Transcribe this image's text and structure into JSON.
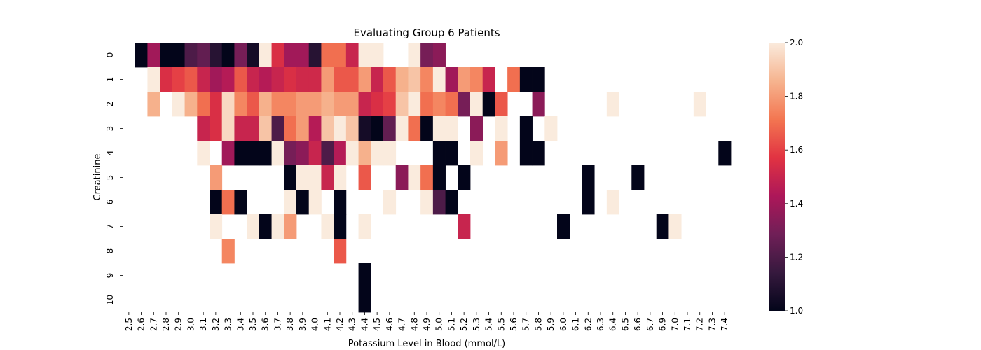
{
  "chart_data": {
    "type": "heatmap",
    "title": "Evaluating Group 6 Patients",
    "xlabel": "Potassium Level in Blood (mmol/L)",
    "ylabel": "Creatinine",
    "x_categories": [
      "2.5",
      "2.6",
      "2.7",
      "2.8",
      "2.9",
      "3.0",
      "3.1",
      "3.2",
      "3.3",
      "3.4",
      "3.5",
      "3.6",
      "3.7",
      "3.8",
      "3.9",
      "4.0",
      "4.1",
      "4.2",
      "4.3",
      "4.4",
      "4.5",
      "4.6",
      "4.7",
      "4.8",
      "4.9",
      "5.0",
      "5.1",
      "5.2",
      "5.3",
      "5.4",
      "5.5",
      "5.6",
      "5.7",
      "5.8",
      "5.9",
      "6.0",
      "6.1",
      "6.2",
      "6.3",
      "6.4",
      "6.5",
      "6.6",
      "6.7",
      "6.9",
      "7.0",
      "7.1",
      "7.2",
      "7.3",
      "7.4"
    ],
    "y_categories": [
      "0",
      "1",
      "2",
      "3",
      "4",
      "5",
      "6",
      "7",
      "8",
      "9",
      "10"
    ],
    "value_range": [
      1.0,
      2.0
    ],
    "colorbar_ticks": [
      "1.0",
      "1.2",
      "1.4",
      "1.6",
      "1.8",
      "2.0"
    ],
    "colormap": [
      "#03051a",
      "#36193e",
      "#701f57",
      "#ad1759",
      "#e13342",
      "#f37651",
      "#f6b48f",
      "#faebdd"
    ],
    "values": [
      [
        null,
        1.0,
        1.4,
        1.0,
        1.0,
        1.2,
        1.25,
        1.1,
        1.0,
        1.3,
        1.05,
        2.0,
        1.55,
        1.4,
        1.4,
        1.1,
        1.7,
        1.7,
        1.5,
        2.0,
        2.0,
        null,
        null,
        2.0,
        1.3,
        1.35,
        null,
        null,
        null,
        null,
        null,
        null,
        null,
        null,
        null,
        null,
        null,
        null,
        null,
        null,
        null,
        null,
        null,
        null,
        null,
        null,
        null,
        null,
        null
      ],
      [
        null,
        null,
        2.0,
        1.55,
        1.6,
        1.65,
        1.5,
        1.4,
        1.45,
        1.65,
        1.5,
        1.45,
        1.5,
        1.55,
        1.52,
        1.52,
        1.8,
        1.65,
        1.65,
        1.8,
        1.5,
        1.65,
        1.85,
        1.9,
        1.75,
        2.0,
        1.4,
        1.8,
        1.75,
        1.5,
        null,
        1.7,
        1.0,
        1.0,
        null,
        null,
        null,
        null,
        null,
        null,
        null,
        null,
        null,
        null,
        null,
        null,
        null,
        null,
        null
      ],
      [
        null,
        null,
        1.85,
        null,
        2.0,
        1.85,
        1.7,
        1.55,
        1.95,
        1.75,
        1.65,
        1.85,
        1.75,
        1.75,
        1.8,
        1.8,
        1.85,
        1.8,
        1.8,
        1.5,
        1.55,
        1.6,
        1.9,
        2.0,
        1.7,
        1.75,
        1.7,
        1.3,
        2.0,
        1.0,
        1.65,
        null,
        null,
        1.35,
        null,
        null,
        null,
        null,
        null,
        2.0,
        null,
        null,
        null,
        null,
        null,
        null,
        2.0,
        null,
        null
      ],
      [
        null,
        null,
        null,
        null,
        null,
        null,
        1.5,
        1.55,
        1.95,
        1.5,
        1.5,
        1.9,
        1.2,
        1.7,
        1.8,
        1.45,
        1.9,
        2.0,
        1.9,
        1.05,
        1.0,
        1.25,
        2.0,
        1.7,
        1.0,
        2.0,
        2.0,
        null,
        1.35,
        null,
        2.0,
        null,
        1.0,
        null,
        2.0,
        null,
        null,
        null,
        null,
        null,
        null,
        null,
        null,
        null,
        null,
        null,
        null,
        null,
        null
      ],
      [
        null,
        null,
        null,
        null,
        null,
        null,
        2.0,
        null,
        1.4,
        1.0,
        1.0,
        1.0,
        2.0,
        1.3,
        1.35,
        1.5,
        1.2,
        1.45,
        2.0,
        1.85,
        2.0,
        2.0,
        null,
        null,
        null,
        1.0,
        1.0,
        null,
        2.0,
        null,
        1.8,
        null,
        1.0,
        1.0,
        null,
        null,
        null,
        null,
        null,
        null,
        null,
        null,
        null,
        null,
        null,
        null,
        null,
        null,
        1.0
      ],
      [
        null,
        null,
        null,
        null,
        null,
        null,
        null,
        1.8,
        null,
        null,
        null,
        null,
        null,
        1.0,
        2.0,
        2.0,
        1.5,
        2.0,
        null,
        1.65,
        null,
        null,
        1.35,
        2.0,
        1.7,
        1.0,
        null,
        1.0,
        null,
        null,
        null,
        null,
        null,
        null,
        null,
        null,
        null,
        1.0,
        null,
        null,
        null,
        1.0,
        null,
        null,
        null,
        null,
        null,
        null,
        null
      ],
      [
        null,
        null,
        null,
        null,
        null,
        null,
        null,
        1.0,
        1.7,
        1.0,
        null,
        null,
        null,
        2.0,
        1.0,
        2.0,
        null,
        1.0,
        null,
        null,
        null,
        2.0,
        null,
        null,
        2.0,
        1.2,
        1.0,
        null,
        null,
        null,
        null,
        null,
        null,
        null,
        null,
        null,
        null,
        1.0,
        null,
        2.0,
        null,
        null,
        null,
        null,
        null,
        null,
        null,
        null,
        null
      ],
      [
        null,
        null,
        null,
        null,
        null,
        null,
        null,
        2.0,
        null,
        null,
        2.0,
        1.0,
        2.0,
        1.8,
        null,
        null,
        2.0,
        1.0,
        null,
        2.0,
        null,
        null,
        null,
        null,
        null,
        null,
        null,
        1.5,
        null,
        null,
        null,
        null,
        null,
        null,
        null,
        1.0,
        null,
        null,
        null,
        null,
        null,
        null,
        null,
        1.0,
        2.0,
        null,
        null,
        null,
        null
      ],
      [
        null,
        null,
        null,
        null,
        null,
        null,
        null,
        null,
        1.75,
        null,
        null,
        null,
        null,
        null,
        null,
        null,
        null,
        1.65,
        null,
        null,
        null,
        null,
        null,
        null,
        null,
        null,
        null,
        null,
        null,
        null,
        null,
        null,
        null,
        null,
        null,
        null,
        null,
        null,
        null,
        null,
        null,
        null,
        null,
        null,
        null,
        null,
        null,
        null,
        null
      ],
      [
        null,
        null,
        null,
        null,
        null,
        null,
        null,
        null,
        null,
        null,
        null,
        null,
        null,
        null,
        null,
        null,
        null,
        null,
        null,
        1.0,
        null,
        null,
        null,
        null,
        null,
        null,
        null,
        null,
        null,
        null,
        null,
        null,
        null,
        null,
        null,
        null,
        null,
        null,
        null,
        null,
        null,
        null,
        null,
        null,
        null,
        null,
        null,
        null,
        null
      ],
      [
        null,
        null,
        null,
        null,
        null,
        null,
        null,
        null,
        null,
        null,
        null,
        null,
        null,
        null,
        null,
        null,
        null,
        null,
        null,
        1.0,
        null,
        null,
        null,
        null,
        null,
        null,
        null,
        null,
        null,
        null,
        null,
        null,
        null,
        null,
        null,
        null,
        null,
        null,
        null,
        null,
        null,
        null,
        null,
        null,
        null,
        null,
        null,
        null,
        null
      ]
    ]
  }
}
